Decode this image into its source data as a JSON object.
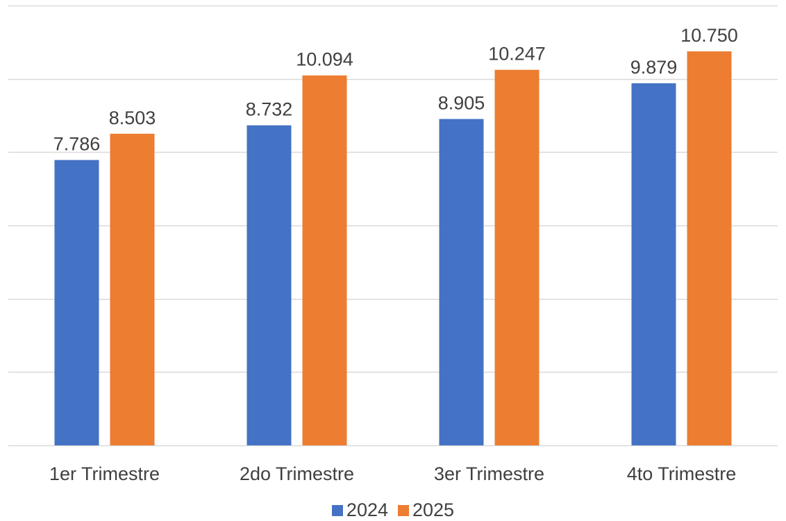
{
  "chart_data": {
    "type": "bar",
    "title": "",
    "xlabel": "",
    "ylabel": "",
    "categories": [
      "1er Trimestre",
      "2do Trimestre",
      "3er Trimestre",
      "4to Trimestre"
    ],
    "series": [
      {
        "name": "2024",
        "color": "#4472C4",
        "values": [
          7786,
          8732,
          8905,
          9879
        ],
        "labels": [
          "7.786",
          "8.732",
          "8.905",
          "9.879"
        ]
      },
      {
        "name": "2025",
        "color": "#ED7D31",
        "values": [
          8503,
          10094,
          10247,
          10750
        ],
        "labels": [
          "8.503",
          "10.094",
          "10.247",
          "10.750"
        ]
      }
    ],
    "ylim": [
      0,
      12000
    ],
    "y_tick_step": 2000,
    "y_tick_labels_visible": false,
    "grid": true,
    "legend_position": "bottom"
  }
}
